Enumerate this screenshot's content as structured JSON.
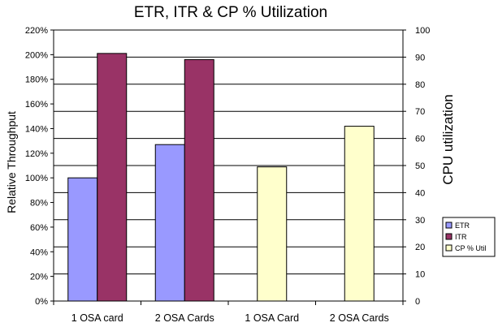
{
  "chart_data": {
    "type": "bar",
    "title": "ETR, ITR & CP % Utilization",
    "categories": [
      "1 OSA card",
      "2 OSA Cards",
      "1 OSA Card",
      "2 OSA Cards"
    ],
    "y_left": {
      "label": "Relative Throughput",
      "ticks": [
        "0%",
        "20%",
        "40%",
        "60%",
        "80%",
        "100%",
        "120%",
        "140%",
        "160%",
        "180%",
        "200%",
        "220%"
      ],
      "range": [
        0,
        220
      ]
    },
    "y_right": {
      "label": "CPU utilization",
      "ticks": [
        "0",
        "10",
        "20",
        "30",
        "40",
        "50",
        "60",
        "70",
        "80",
        "90",
        "100"
      ],
      "range": [
        0,
        100
      ]
    },
    "series": [
      {
        "name": "ETR",
        "axis": "left",
        "color": "#9999ff",
        "values": [
          100,
          127,
          null,
          null
        ]
      },
      {
        "name": "ITR",
        "axis": "left",
        "color": "#993366",
        "values": [
          201,
          196,
          null,
          null
        ]
      },
      {
        "name": "CP % Util",
        "axis": "right",
        "color": "#ffffcc",
        "values": [
          null,
          null,
          49.5,
          64.5
        ]
      }
    ],
    "grid": true,
    "legend_position": "right"
  }
}
